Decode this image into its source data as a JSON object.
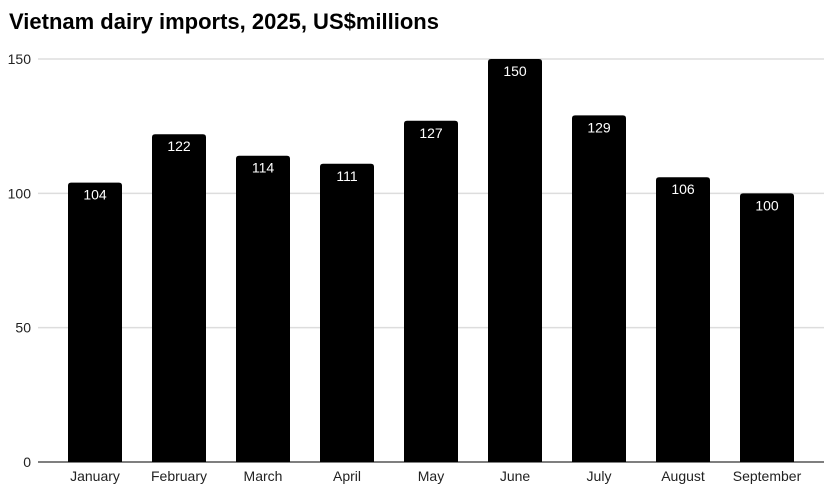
{
  "chart_data": {
    "type": "bar",
    "title": "Vietnam dairy imports, 2025, US$millions",
    "categories": [
      "January",
      "February",
      "March",
      "April",
      "May",
      "June",
      "July",
      "August",
      "September"
    ],
    "values": [
      104,
      122,
      114,
      111,
      127,
      150,
      129,
      106,
      100
    ],
    "ylim": [
      0,
      150
    ],
    "yticks": [
      0,
      50,
      100,
      150
    ],
    "grid": true,
    "bar_color": "#000000",
    "label_color": "#ffffff",
    "xlabel": "",
    "ylabel": ""
  }
}
